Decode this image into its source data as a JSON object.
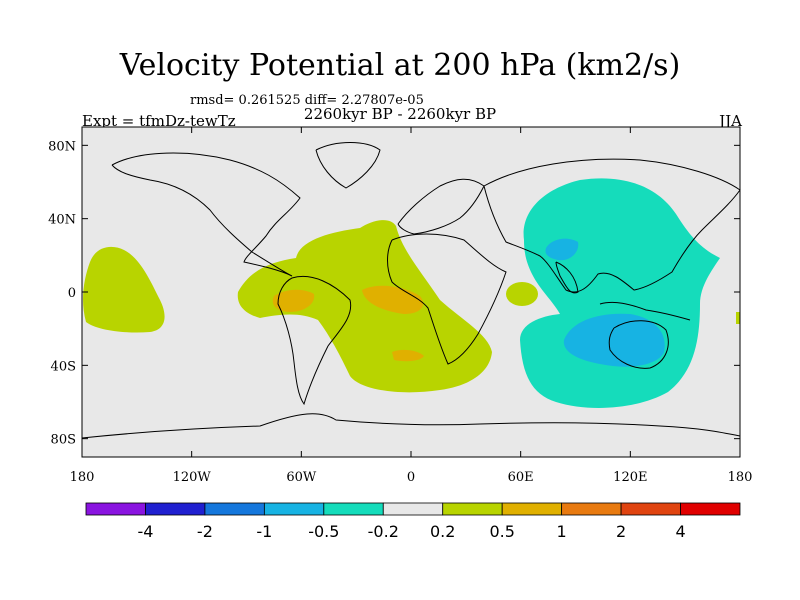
{
  "title": "Velocity Potential at 200 hPa (km2/s)",
  "stats": "rmsd= 0.261525 diff= 2.27807e-05",
  "left_label": "Expt = tfmDz-tewTz",
  "center_label": "2260kyr BP - 2260kyr BP",
  "right_label": "JJA",
  "lat_ticks": [
    "80N",
    "40N",
    "0",
    "40S",
    "80S"
  ],
  "lon_ticks": [
    "180",
    "120W",
    "60W",
    "0",
    "60E",
    "120E",
    "180"
  ],
  "colorbar": {
    "colors": [
      "#8a14e0",
      "#2020d0",
      "#1577dc",
      "#17b3e3",
      "#15dcbb",
      "#e8e8e8",
      "#b8d400",
      "#e0b000",
      "#e87a10",
      "#e04410",
      "#e00000"
    ],
    "labels": [
      "-4",
      "-2",
      "-1",
      "-0.5",
      "-0.2",
      "0.2",
      "0.5",
      "1",
      "2",
      "4"
    ]
  },
  "map_colors": {
    "ocean_bg": "#e8e8e8",
    "positive_low": "#b8d400",
    "positive_mid": "#e0b000",
    "negative_low": "#15dcbb",
    "negative_mid": "#17b3e3"
  }
}
